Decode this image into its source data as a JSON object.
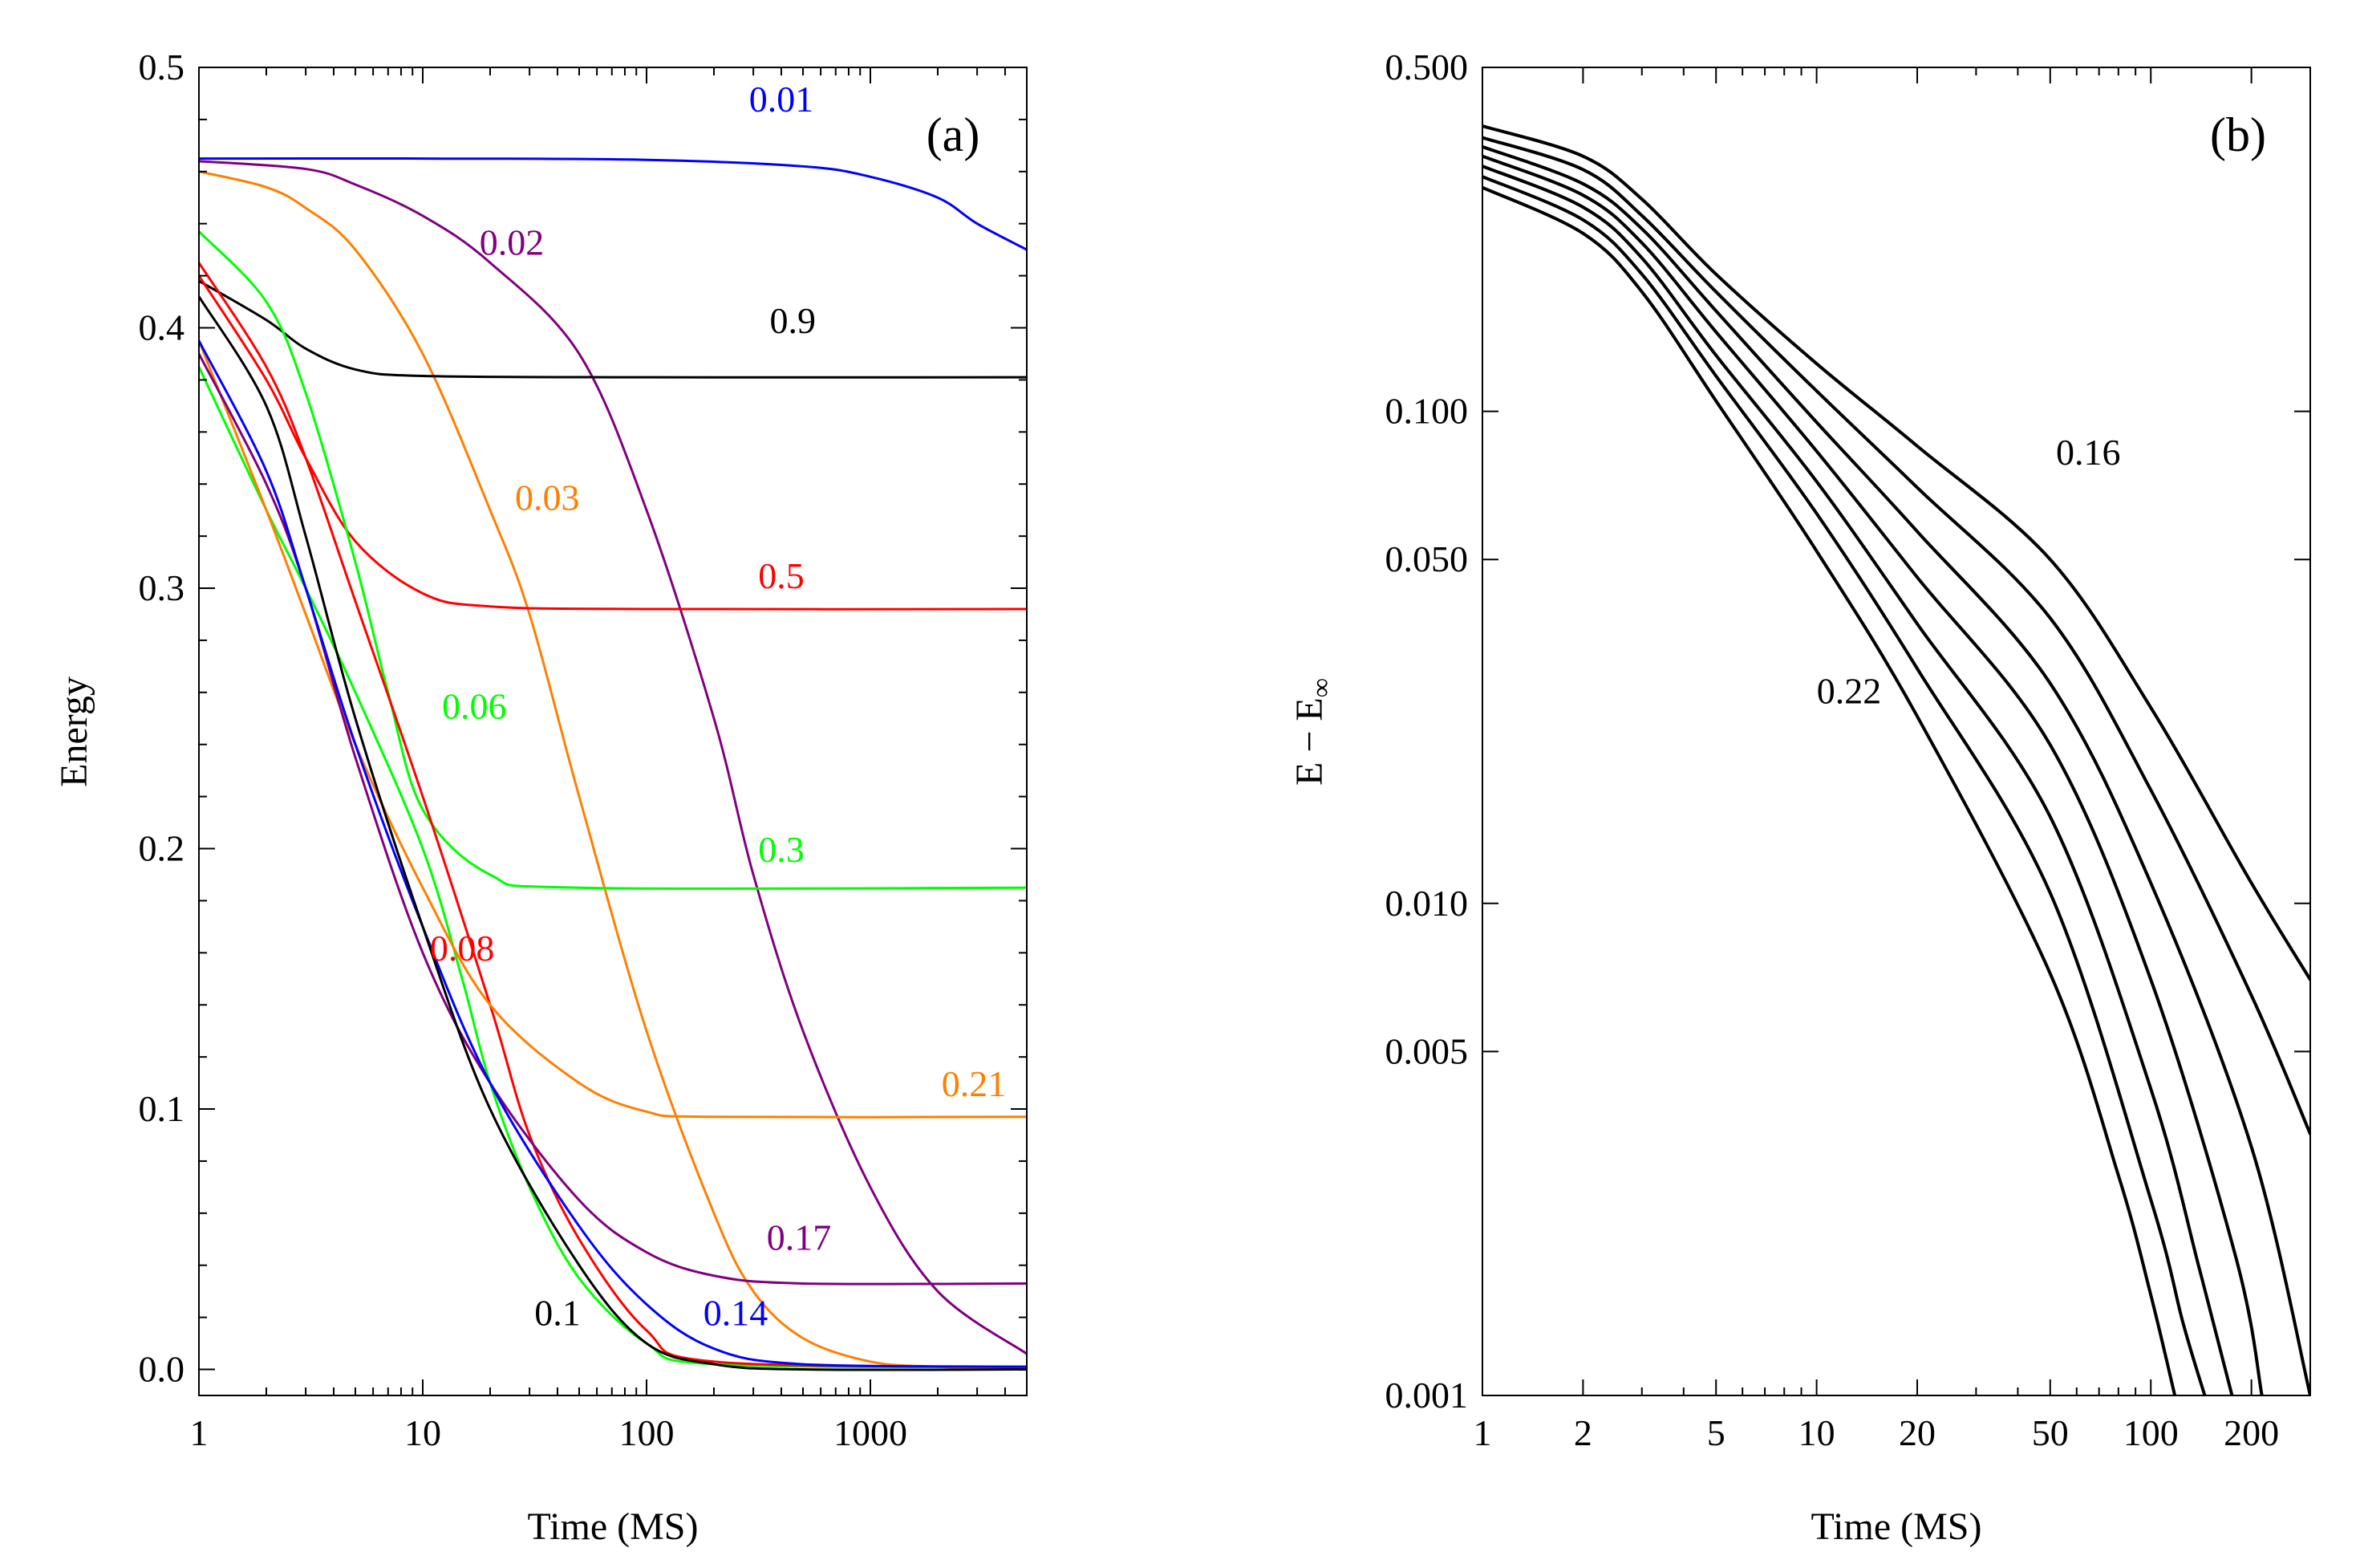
{
  "chart_data": [
    {
      "type": "line",
      "panel_label": "(a)",
      "xlabel": "Time (MS)",
      "ylabel": "Energy",
      "xscale": "log",
      "xlim": [
        1,
        5000
      ],
      "ylim": [
        -0.01,
        0.5
      ],
      "xticks": [
        1,
        10,
        100,
        1000
      ],
      "xtick_labels": [
        "1",
        "10",
        "100",
        "1000"
      ],
      "yticks": [
        0.0,
        0.1,
        0.2,
        0.3,
        0.4,
        0.5
      ],
      "ytick_labels": [
        "0.0",
        "0.1",
        "0.2",
        "0.3",
        "0.4",
        "0.5"
      ],
      "grid": false,
      "series": [
        {
          "name": "0.01",
          "color": "#0000ff",
          "label_at": [
            400,
            0.483
          ],
          "points": [
            [
              1,
              0.465
            ],
            [
              10,
              0.465
            ],
            [
              100,
              0.4645
            ],
            [
              500,
              0.462
            ],
            [
              1000,
              0.458
            ],
            [
              2000,
              0.45
            ],
            [
              3000,
              0.44
            ],
            [
              5000,
              0.43
            ]
          ]
        },
        {
          "name": "0.02",
          "color": "#800080",
          "label_at": [
            25,
            0.428
          ],
          "points": [
            [
              1,
              0.464
            ],
            [
              3,
              0.461
            ],
            [
              5,
              0.455
            ],
            [
              10,
              0.443
            ],
            [
              20,
              0.425
            ],
            [
              50,
              0.39
            ],
            [
              100,
              0.33
            ],
            [
              200,
              0.25
            ],
            [
              300,
              0.19
            ],
            [
              500,
              0.13
            ],
            [
              1000,
              0.07
            ],
            [
              2000,
              0.03
            ],
            [
              5000,
              0.006
            ]
          ]
        },
        {
          "name": "0.03",
          "color": "#ff7f00",
          "label_at": [
            36,
            0.33
          ],
          "points": [
            [
              1,
              0.46
            ],
            [
              2,
              0.454
            ],
            [
              3,
              0.446
            ],
            [
              5,
              0.43
            ],
            [
              10,
              0.39
            ],
            [
              20,
              0.33
            ],
            [
              30,
              0.29
            ],
            [
              50,
              0.22
            ],
            [
              100,
              0.13
            ],
            [
              200,
              0.06
            ],
            [
              300,
              0.03
            ],
            [
              500,
              0.012
            ],
            [
              1000,
              0.003
            ],
            [
              2000,
              0.001
            ],
            [
              5000,
              0.0
            ]
          ]
        },
        {
          "name": "0.9",
          "color": "#000000",
          "label_at": [
            450,
            0.398
          ],
          "points": [
            [
              1,
              0.418
            ],
            [
              2,
              0.403
            ],
            [
              3,
              0.392
            ],
            [
              5,
              0.384
            ],
            [
              10,
              0.3815
            ],
            [
              100,
              0.381
            ],
            [
              5000,
              0.381
            ]
          ]
        },
        {
          "name": "0.5",
          "color": "#ff0000",
          "label_at": [
            400,
            0.3
          ],
          "points": [
            [
              1,
              0.42
            ],
            [
              2,
              0.38
            ],
            [
              3,
              0.35
            ],
            [
              5,
              0.318
            ],
            [
              10,
              0.298
            ],
            [
              20,
              0.293
            ],
            [
              100,
              0.292
            ],
            [
              5000,
              0.292
            ]
          ]
        },
        {
          "name": "0.06",
          "color": "#00ff00",
          "label_at": [
            17,
            0.25
          ],
          "points": [
            [
              1,
              0.437
            ],
            [
              2,
              0.41
            ],
            [
              3,
              0.375
            ],
            [
              5,
              0.31
            ],
            [
              7,
              0.26
            ],
            [
              10,
              0.215
            ],
            [
              20,
              0.19
            ],
            [
              50,
              0.185
            ],
            [
              5000,
              0.185
            ]
          ]
        },
        {
          "name": "0.3",
          "color": "#00ff00",
          "label_at": [
            400,
            0.195
          ],
          "points": [
            [
              1,
              0.385
            ],
            [
              2,
              0.33
            ],
            [
              3,
              0.3
            ],
            [
              5,
              0.26
            ],
            [
              10,
              0.2
            ],
            [
              15,
              0.15
            ],
            [
              20,
              0.11
            ],
            [
              30,
              0.07
            ],
            [
              50,
              0.035
            ],
            [
              100,
              0.01
            ],
            [
              200,
              0.002
            ],
            [
              5000,
              0.001
            ]
          ]
        },
        {
          "name": "0.08",
          "color": "#ff0000",
          "label_at": [
            15,
            0.157
          ],
          "points": [
            [
              1,
              0.425
            ],
            [
              2,
              0.385
            ],
            [
              3,
              0.35
            ],
            [
              5,
              0.295
            ],
            [
              10,
              0.22
            ],
            [
              20,
              0.14
            ],
            [
              30,
              0.09
            ],
            [
              50,
              0.05
            ],
            [
              100,
              0.015
            ],
            [
              200,
              0.003
            ],
            [
              5000,
              0.001
            ]
          ]
        },
        {
          "name": "0.21",
          "color": "#ff7f00",
          "label_at": [
            2900,
            0.105
          ],
          "points": [
            [
              1,
              0.395
            ],
            [
              2,
              0.33
            ],
            [
              3,
              0.29
            ],
            [
              5,
              0.24
            ],
            [
              10,
              0.185
            ],
            [
              20,
              0.14
            ],
            [
              50,
              0.11
            ],
            [
              100,
              0.099
            ],
            [
              200,
              0.097
            ],
            [
              5000,
              0.097
            ]
          ]
        },
        {
          "name": "0.17",
          "color": "#800080",
          "label_at": [
            480,
            0.046
          ],
          "points": [
            [
              1,
              0.39
            ],
            [
              2,
              0.34
            ],
            [
              3,
              0.3
            ],
            [
              5,
              0.235
            ],
            [
              10,
              0.16
            ],
            [
              20,
              0.11
            ],
            [
              50,
              0.065
            ],
            [
              100,
              0.045
            ],
            [
              200,
              0.036
            ],
            [
              500,
              0.033
            ],
            [
              5000,
              0.033
            ]
          ]
        },
        {
          "name": "0.14",
          "color": "#0000ff",
          "label_at": [
            250,
            0.017
          ],
          "points": [
            [
              1,
              0.395
            ],
            [
              2,
              0.345
            ],
            [
              3,
              0.3
            ],
            [
              5,
              0.24
            ],
            [
              10,
              0.17
            ],
            [
              20,
              0.11
            ],
            [
              50,
              0.055
            ],
            [
              100,
              0.025
            ],
            [
              200,
              0.008
            ],
            [
              500,
              0.002
            ],
            [
              5000,
              0.001
            ]
          ]
        },
        {
          "name": "0.1",
          "color": "#000000",
          "label_at": [
            40,
            0.017
          ],
          "points": [
            [
              1,
              0.412
            ],
            [
              2,
              0.37
            ],
            [
              3,
              0.32
            ],
            [
              5,
              0.25
            ],
            [
              10,
              0.17
            ],
            [
              20,
              0.1
            ],
            [
              50,
              0.04
            ],
            [
              100,
              0.01
            ],
            [
              200,
              0.002
            ],
            [
              500,
              0.0
            ],
            [
              5000,
              0.0
            ]
          ]
        }
      ]
    },
    {
      "type": "line",
      "panel_label": "(b)",
      "xlabel": "Time (MS)",
      "ylabel": "E − E",
      "ylabel_subscript": "∞",
      "xscale": "log",
      "yscale": "log",
      "xlim": [
        1,
        300
      ],
      "ylim": [
        0.001,
        0.5
      ],
      "xticks": [
        1,
        2,
        5,
        10,
        20,
        50,
        100,
        200
      ],
      "xtick_labels": [
        "1",
        "2",
        "5",
        "10",
        "20",
        "50",
        "100",
        "200"
      ],
      "yticks": [
        0.001,
        0.005,
        0.01,
        0.05,
        0.1,
        0.5
      ],
      "ytick_labels": [
        "0.001",
        "0.005",
        "0.010",
        "0.050",
        "0.100",
        "0.500"
      ],
      "grid": false,
      "annotations": [
        {
          "text": "0.16",
          "x": 65,
          "y": 0.078
        },
        {
          "text": "0.22",
          "x": 12.5,
          "y": 0.0255
        }
      ],
      "series": [
        {
          "color": "#000000",
          "points": [
            [
              1,
              0.38
            ],
            [
              2,
              0.33
            ],
            [
              3,
              0.27
            ],
            [
              5,
              0.19
            ],
            [
              10,
              0.125
            ],
            [
              20,
              0.085
            ],
            [
              50,
              0.05
            ],
            [
              100,
              0.025
            ],
            [
              200,
              0.011
            ],
            [
              300,
              0.007
            ]
          ]
        },
        {
          "color": "#000000",
          "points": [
            [
              1,
              0.36
            ],
            [
              2,
              0.31
            ],
            [
              3,
              0.25
            ],
            [
              5,
              0.175
            ],
            [
              10,
              0.11
            ],
            [
              20,
              0.07
            ],
            [
              50,
              0.038
            ],
            [
              100,
              0.017
            ],
            [
              200,
              0.0065
            ],
            [
              300,
              0.0034
            ]
          ]
        },
        {
          "color": "#000000",
          "points": [
            [
              1,
              0.345
            ],
            [
              2,
              0.29
            ],
            [
              3,
              0.235
            ],
            [
              5,
              0.16
            ],
            [
              10,
              0.095
            ],
            [
              20,
              0.057
            ],
            [
              50,
              0.028
            ],
            [
              100,
              0.011
            ],
            [
              200,
              0.0032
            ],
            [
              300,
              0.001
            ]
          ]
        },
        {
          "color": "#000000",
          "points": [
            [
              1,
              0.33
            ],
            [
              2,
              0.275
            ],
            [
              3,
              0.22
            ],
            [
              5,
              0.145
            ],
            [
              10,
              0.083
            ],
            [
              20,
              0.046
            ],
            [
              50,
              0.021
            ],
            [
              100,
              0.007
            ],
            [
              180,
              0.0019
            ],
            [
              215,
              0.001
            ]
          ]
        },
        {
          "color": "#000000",
          "points": [
            [
              1,
              0.315
            ],
            [
              2,
              0.26
            ],
            [
              3,
              0.205
            ],
            [
              5,
              0.13
            ],
            [
              10,
              0.072
            ],
            [
              20,
              0.037
            ],
            [
              50,
              0.015
            ],
            [
              100,
              0.0042
            ],
            [
              140,
              0.0018
            ],
            [
              175,
              0.001
            ]
          ]
        },
        {
          "color": "#000000",
          "points": [
            [
              1,
              0.3
            ],
            [
              2,
              0.245
            ],
            [
              3,
              0.19
            ],
            [
              5,
              0.118
            ],
            [
              10,
              0.062
            ],
            [
              20,
              0.03
            ],
            [
              50,
              0.0105
            ],
            [
              100,
              0.0025
            ],
            [
              125,
              0.0014
            ],
            [
              145,
              0.001
            ]
          ]
        },
        {
          "color": "#000000",
          "points": [
            [
              1,
              0.285
            ],
            [
              2,
              0.23
            ],
            [
              3,
              0.175
            ],
            [
              5,
              0.105
            ],
            [
              10,
              0.052
            ],
            [
              20,
              0.024
            ],
            [
              50,
              0.0072
            ],
            [
              80,
              0.0028
            ],
            [
              100,
              0.0016
            ],
            [
              118,
              0.001
            ]
          ]
        }
      ]
    }
  ]
}
